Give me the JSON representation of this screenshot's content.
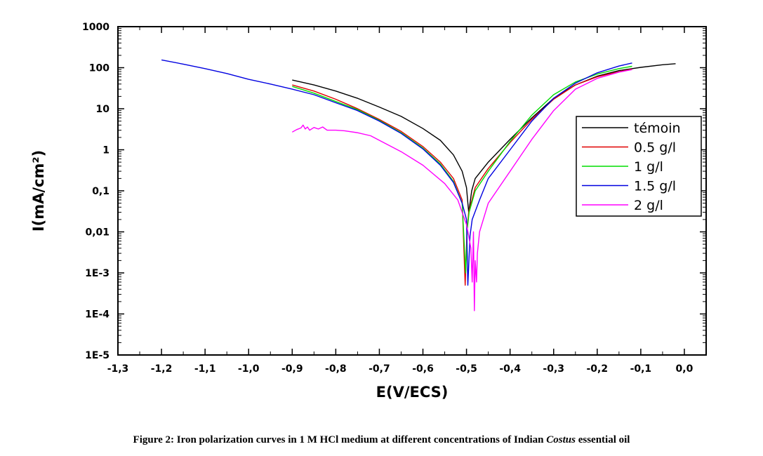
{
  "caption": {
    "text": "Figure 2: Iron polarization curves in 1 M HCl medium at different concentrations of Indian ",
    "italic": "Costus",
    "suffix": " essential oil"
  },
  "chart_data": {
    "type": "line",
    "xlabel": "E(V/ECS)",
    "ylabel": "I(mA/cm²)",
    "xlim": [
      -1.3,
      0.05
    ],
    "ylim": [
      1e-05,
      1000
    ],
    "yscale": "log",
    "legend_position": "right",
    "x_ticks": [
      -1.3,
      -1.2,
      -1.1,
      -1.0,
      -0.9,
      -0.8,
      -0.7,
      -0.6,
      -0.5,
      -0.4,
      -0.3,
      -0.2,
      -0.1,
      0.0
    ],
    "x_tick_labels": [
      "-1,3",
      "-1,2",
      "-1,1",
      "-1,0",
      "-0,9",
      "-0,8",
      "-0,7",
      "-0,6",
      "-0,5",
      "-0,4",
      "-0,3",
      "-0,2",
      "-0,1",
      "0,0"
    ],
    "y_ticks": [
      1e-05,
      0.0001,
      0.001,
      0.01,
      0.1,
      1,
      10,
      100,
      1000
    ],
    "y_tick_labels": [
      "1E-5",
      "1E-4",
      "1E-3",
      "0,01",
      "0,1",
      "1",
      "10",
      "100",
      "1000"
    ],
    "series": [
      {
        "name": "témoin",
        "color": "#000000",
        "points": [
          [
            -0.9,
            50
          ],
          [
            -0.85,
            38
          ],
          [
            -0.8,
            27
          ],
          [
            -0.75,
            18
          ],
          [
            -0.7,
            11
          ],
          [
            -0.65,
            6.5
          ],
          [
            -0.6,
            3.3
          ],
          [
            -0.56,
            1.7
          ],
          [
            -0.53,
            0.75
          ],
          [
            -0.51,
            0.3
          ],
          [
            -0.5,
            0.12
          ],
          [
            -0.495,
            0.03
          ],
          [
            -0.492,
            0.05
          ],
          [
            -0.488,
            0.1
          ],
          [
            -0.48,
            0.2
          ],
          [
            -0.45,
            0.5
          ],
          [
            -0.4,
            1.8
          ],
          [
            -0.35,
            6
          ],
          [
            -0.3,
            18
          ],
          [
            -0.25,
            38
          ],
          [
            -0.2,
            62
          ],
          [
            -0.15,
            85
          ],
          [
            -0.1,
            102
          ],
          [
            -0.05,
            118
          ],
          [
            -0.02,
            125
          ]
        ]
      },
      {
        "name": "0.5 g/l",
        "color": "#e00000",
        "points": [
          [
            -0.9,
            38
          ],
          [
            -0.85,
            27
          ],
          [
            -0.8,
            17
          ],
          [
            -0.75,
            10
          ],
          [
            -0.7,
            5.5
          ],
          [
            -0.65,
            2.8
          ],
          [
            -0.6,
            1.2
          ],
          [
            -0.56,
            0.5
          ],
          [
            -0.53,
            0.2
          ],
          [
            -0.51,
            0.06
          ],
          [
            -0.503,
            0.0005
          ],
          [
            -0.499,
            0.01
          ],
          [
            -0.495,
            0.03
          ],
          [
            -0.48,
            0.12
          ],
          [
            -0.45,
            0.35
          ],
          [
            -0.4,
            1.5
          ],
          [
            -0.35,
            5.5
          ],
          [
            -0.3,
            17
          ],
          [
            -0.25,
            38
          ],
          [
            -0.2,
            60
          ],
          [
            -0.15,
            80
          ],
          [
            -0.12,
            92
          ]
        ]
      },
      {
        "name": "1 g/l",
        "color": "#00dd00",
        "points": [
          [
            -0.9,
            35
          ],
          [
            -0.85,
            24
          ],
          [
            -0.8,
            15
          ],
          [
            -0.75,
            9.5
          ],
          [
            -0.7,
            5.2
          ],
          [
            -0.65,
            2.6
          ],
          [
            -0.6,
            1.1
          ],
          [
            -0.56,
            0.45
          ],
          [
            -0.53,
            0.17
          ],
          [
            -0.51,
            0.05
          ],
          [
            -0.502,
            0.001
          ],
          [
            -0.498,
            0.012
          ],
          [
            -0.494,
            0.03
          ],
          [
            -0.48,
            0.1
          ],
          [
            -0.45,
            0.3
          ],
          [
            -0.4,
            1.6
          ],
          [
            -0.35,
            7
          ],
          [
            -0.3,
            22
          ],
          [
            -0.25,
            45
          ],
          [
            -0.2,
            70
          ],
          [
            -0.15,
            95
          ],
          [
            -0.12,
            108
          ]
        ]
      },
      {
        "name": "1.5 g/l",
        "color": "#0000e0",
        "points": [
          [
            -1.2,
            155
          ],
          [
            -1.15,
            122
          ],
          [
            -1.1,
            95
          ],
          [
            -1.05,
            72
          ],
          [
            -1.0,
            52
          ],
          [
            -0.95,
            40
          ],
          [
            -0.9,
            30
          ],
          [
            -0.85,
            22
          ],
          [
            -0.8,
            14
          ],
          [
            -0.75,
            9
          ],
          [
            -0.7,
            5
          ],
          [
            -0.65,
            2.5
          ],
          [
            -0.6,
            1.05
          ],
          [
            -0.56,
            0.42
          ],
          [
            -0.53,
            0.16
          ],
          [
            -0.51,
            0.05
          ],
          [
            -0.5,
            0.02
          ],
          [
            -0.497,
            0.0005
          ],
          [
            -0.492,
            0.008
          ],
          [
            -0.487,
            0.02
          ],
          [
            -0.47,
            0.06
          ],
          [
            -0.45,
            0.2
          ],
          [
            -0.4,
            1
          ],
          [
            -0.35,
            5
          ],
          [
            -0.3,
            18
          ],
          [
            -0.25,
            42
          ],
          [
            -0.2,
            75
          ],
          [
            -0.15,
            110
          ],
          [
            -0.12,
            130
          ]
        ]
      },
      {
        "name": "2 g/l",
        "color": "#ff00ff",
        "points": [
          [
            -0.9,
            2.7
          ],
          [
            -0.89,
            3.1
          ],
          [
            -0.88,
            3.4
          ],
          [
            -0.875,
            4
          ],
          [
            -0.87,
            3.2
          ],
          [
            -0.865,
            3.6
          ],
          [
            -0.86,
            3.0
          ],
          [
            -0.85,
            3.5
          ],
          [
            -0.84,
            3.2
          ],
          [
            -0.83,
            3.6
          ],
          [
            -0.82,
            3.0
          ],
          [
            -0.8,
            3.0
          ],
          [
            -0.78,
            2.9
          ],
          [
            -0.75,
            2.6
          ],
          [
            -0.72,
            2.2
          ],
          [
            -0.7,
            1.7
          ],
          [
            -0.65,
            0.9
          ],
          [
            -0.6,
            0.42
          ],
          [
            -0.55,
            0.15
          ],
          [
            -0.52,
            0.06
          ],
          [
            -0.5,
            0.015
          ],
          [
            -0.495,
            0.008
          ],
          [
            -0.49,
            0.004
          ],
          [
            -0.487,
            0.0006
          ],
          [
            -0.484,
            0.01
          ],
          [
            -0.482,
            0.00012
          ],
          [
            -0.48,
            0.002
          ],
          [
            -0.477,
            0.0006
          ],
          [
            -0.475,
            0.003
          ],
          [
            -0.47,
            0.01
          ],
          [
            -0.45,
            0.05
          ],
          [
            -0.4,
            0.3
          ],
          [
            -0.35,
            1.8
          ],
          [
            -0.3,
            9
          ],
          [
            -0.25,
            30
          ],
          [
            -0.2,
            55
          ],
          [
            -0.15,
            78
          ],
          [
            -0.12,
            90
          ]
        ]
      }
    ]
  }
}
